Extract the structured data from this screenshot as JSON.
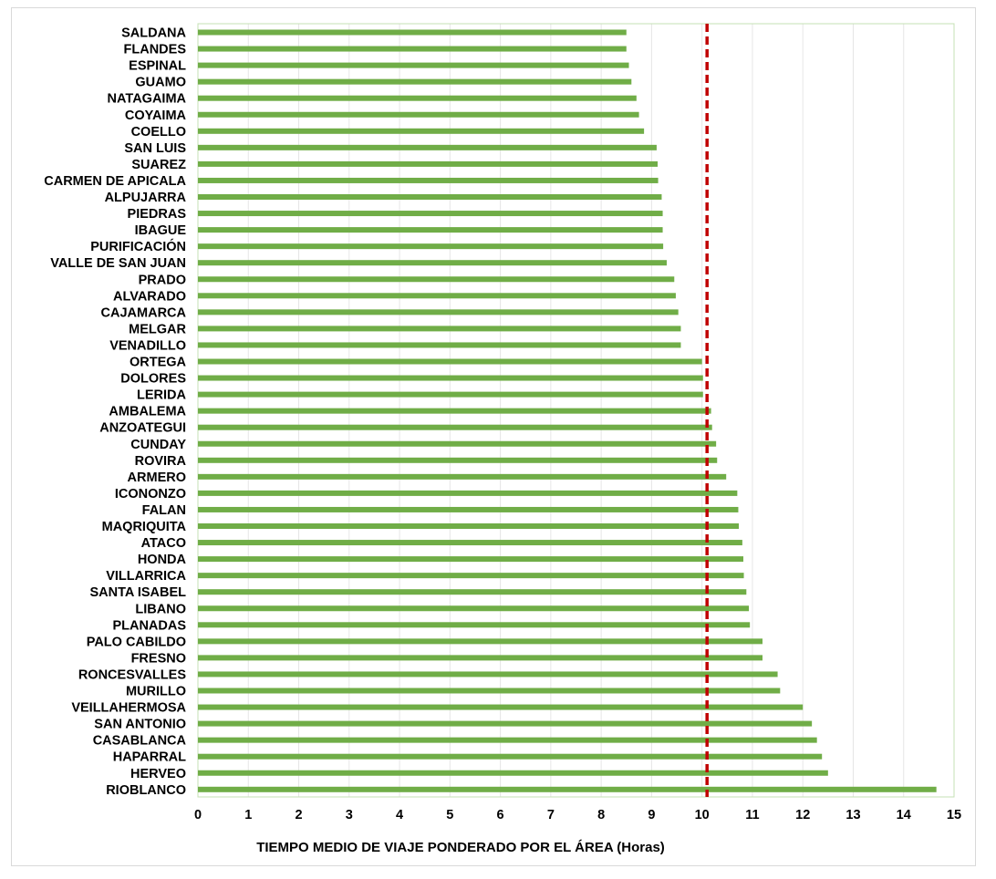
{
  "chart_data": {
    "type": "bar",
    "orientation": "horizontal",
    "categories": [
      "SALDANA",
      "FLANDES",
      "ESPINAL",
      "GUAMO",
      "NATAGAIMA",
      "COYAIMA",
      "COELLO",
      "SAN LUIS",
      "SUAREZ",
      "CARMEN DE APICALA",
      "ALPUJARRA",
      "PIEDRAS",
      "IBAGUE",
      "PURIFICACIÓN",
      "VALLE DE SAN JUAN",
      "PRADO",
      "ALVARADO",
      "CAJAMARCA",
      "MELGAR",
      "VENADILLO",
      "ORTEGA",
      "DOLORES",
      "LERIDA",
      "AMBALEMA",
      "ANZOATEGUI",
      "CUNDAY",
      "ROVIRA",
      "ARMERO",
      "ICONONZO",
      "FALAN",
      "MAQRIQUITA",
      "ATACO",
      "HONDA",
      "VILLARRICA",
      "SANTA ISABEL",
      "LIBANO",
      "PLANADAS",
      "PALO CABILDO",
      "FRESNO",
      "RONCESVALLES",
      "MURILLO",
      "VEILLAHERMOSA",
      "SAN ANTONIO",
      "CASABLANCA",
      "HAPARRAL",
      "HERVEO",
      "RIOBLANCO"
    ],
    "series": [
      {
        "values": [
          8.5,
          8.5,
          8.55,
          8.6,
          8.7,
          8.75,
          8.85,
          9.1,
          9.12,
          9.13,
          9.2,
          9.22,
          9.22,
          9.23,
          9.3,
          9.45,
          9.48,
          9.53,
          9.58,
          9.58,
          10.0,
          10.02,
          10.02,
          10.18,
          10.2,
          10.28,
          10.3,
          10.48,
          10.7,
          10.72,
          10.73,
          10.8,
          10.82,
          10.83,
          10.88,
          10.93,
          10.95,
          11.2,
          11.2,
          11.5,
          11.55,
          12.0,
          12.18,
          12.28,
          12.38,
          12.5,
          14.65
        ],
        "color": "#70ad47"
      }
    ],
    "reference_line": {
      "value": 10.1,
      "color": "#c00000",
      "style": "dashed"
    },
    "xlabel": "TIEMPO MEDIO DE VIAJE  PONDERADO POR  EL ÁREA (Horas)",
    "xlim": [
      0,
      15
    ],
    "xticks": [
      "0",
      "1",
      "2",
      "3",
      "4",
      "5",
      "6",
      "7",
      "8",
      "9",
      "10",
      "11",
      "12",
      "13",
      "14",
      "15"
    ],
    "grid": "vertical",
    "gridline_color": "#e6e6e6",
    "plot_border_color": "#c6e0b4"
  }
}
